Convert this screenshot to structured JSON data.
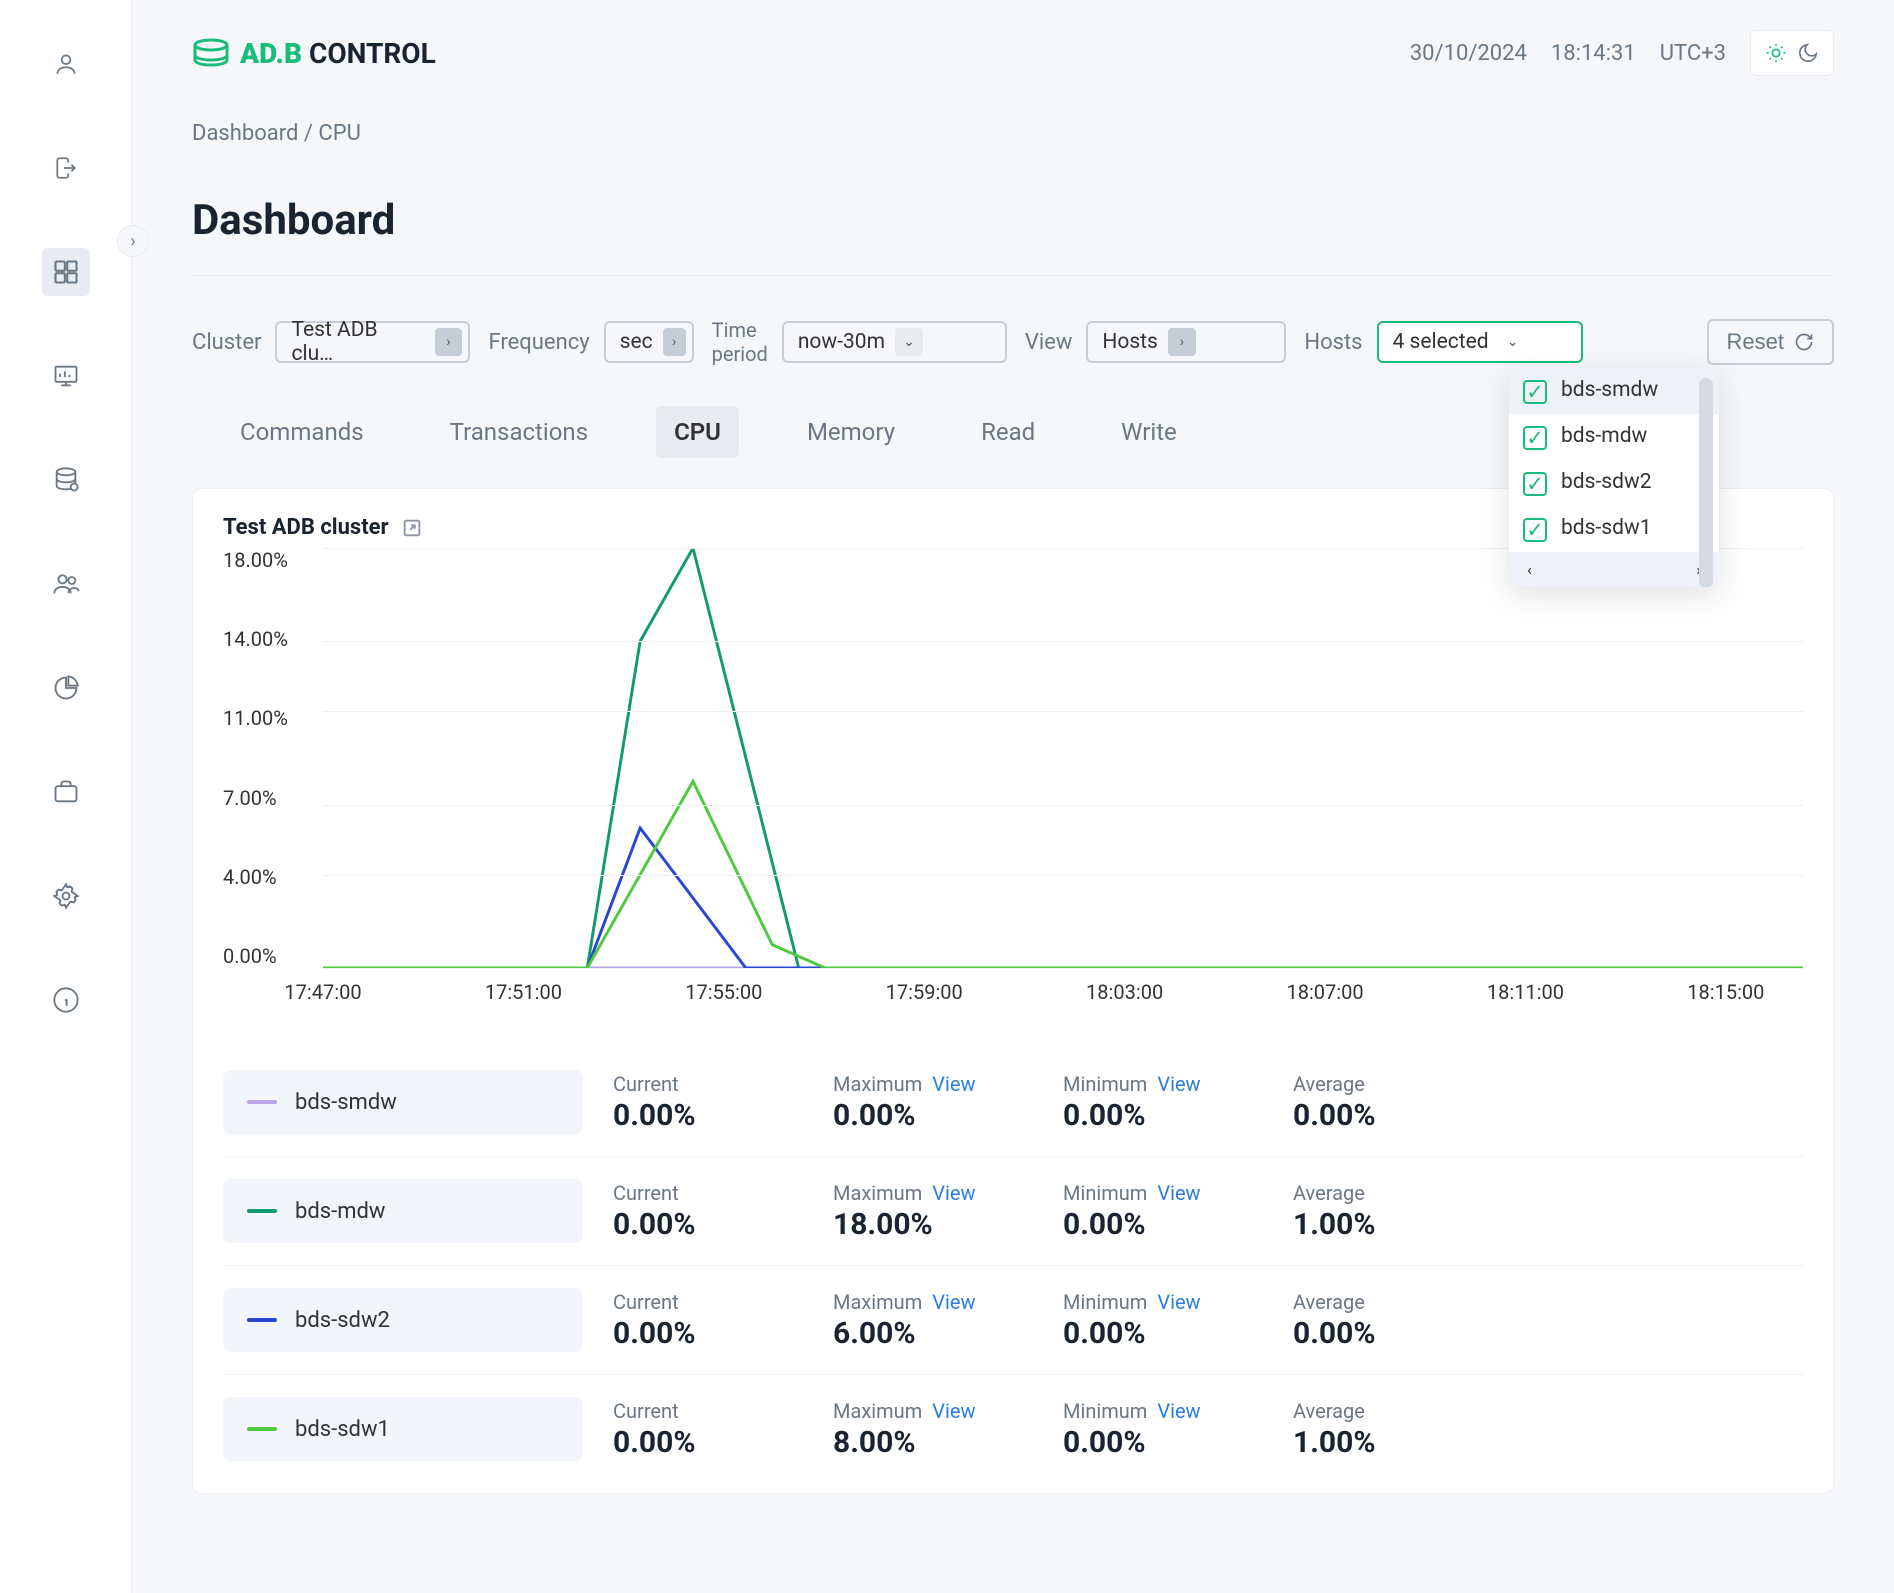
{
  "logo": {
    "brand_a": "AD.",
    "brand_b": "B",
    "suffix": " CONTROL"
  },
  "header": {
    "date": "30/10/2024",
    "time": "18:14:31",
    "tz": "UTC+3"
  },
  "breadcrumb": {
    "root": "Dashboard",
    "sep": " / ",
    "current": "CPU"
  },
  "page_title": "Dashboard",
  "filters": {
    "cluster_label": "Cluster",
    "cluster_value": "Test ADB clu…",
    "frequency_label": "Frequency",
    "frequency_value": "sec",
    "timeperiod_label_1": "Time",
    "timeperiod_label_2": "period",
    "timeperiod_value": "now-30m",
    "view_label": "View",
    "view_value": "Hosts",
    "hosts_label": "Hosts",
    "hosts_value": "4 selected",
    "reset": "Reset"
  },
  "host_dropdown": [
    "bds-smdw",
    "bds-mdw",
    "bds-sdw2",
    "bds-sdw1"
  ],
  "tabs": [
    "Commands",
    "Transactions",
    "CPU",
    "Memory",
    "Read",
    "Write"
  ],
  "active_tab": "CPU",
  "chart": {
    "title": "Test ADB cluster",
    "yticks": [
      "18.00%",
      "14.00%",
      "11.00%",
      "7.00%",
      "4.00%",
      "0.00%"
    ],
    "ytick_vals": [
      18,
      14,
      11,
      7,
      4,
      0
    ],
    "ymax": 18,
    "xticks": [
      "17:47:00",
      "17:51:00",
      "17:55:00",
      "17:59:00",
      "18:03:00",
      "18:07:00",
      "18:11:00",
      "18:15:00"
    ],
    "x_range_min": 47,
    "x_range_max": 75,
    "series": [
      {
        "name": "bds-smdw",
        "color": "#b9a6e8",
        "points": [
          [
            47,
            0
          ],
          [
            75,
            0
          ]
        ]
      },
      {
        "name": "bds-mdw",
        "color": "#139a6b",
        "points": [
          [
            47,
            0
          ],
          [
            52,
            0
          ],
          [
            53,
            14
          ],
          [
            54,
            18
          ],
          [
            56,
            0
          ],
          [
            75,
            0
          ]
        ]
      },
      {
        "name": "bds-sdw2",
        "color": "#2a46d6",
        "points": [
          [
            47,
            0
          ],
          [
            52,
            0
          ],
          [
            53,
            6
          ],
          [
            55,
            0
          ],
          [
            75,
            0
          ]
        ]
      },
      {
        "name": "bds-sdw1",
        "color": "#4fc93f",
        "points": [
          [
            47,
            0
          ],
          [
            52,
            0
          ],
          [
            54,
            8
          ],
          [
            55.5,
            1
          ],
          [
            56.5,
            0
          ],
          [
            75,
            0
          ]
        ]
      }
    ]
  },
  "stats": {
    "labels": {
      "current": "Current",
      "max": "Maximum",
      "min": "Minimum",
      "avg": "Average",
      "view": "View"
    },
    "rows": [
      {
        "name": "bds-smdw",
        "color": "#b9a6e8",
        "current": "0.00%",
        "max": "0.00%",
        "min": "0.00%",
        "avg": "0.00%"
      },
      {
        "name": "bds-mdw",
        "color": "#139a6b",
        "current": "0.00%",
        "max": "18.00%",
        "min": "0.00%",
        "avg": "1.00%"
      },
      {
        "name": "bds-sdw2",
        "color": "#2a46d6",
        "current": "0.00%",
        "max": "6.00%",
        "min": "0.00%",
        "avg": "0.00%"
      },
      {
        "name": "bds-sdw1",
        "color": "#4fc93f",
        "current": "0.00%",
        "max": "8.00%",
        "min": "0.00%",
        "avg": "1.00%"
      }
    ]
  }
}
